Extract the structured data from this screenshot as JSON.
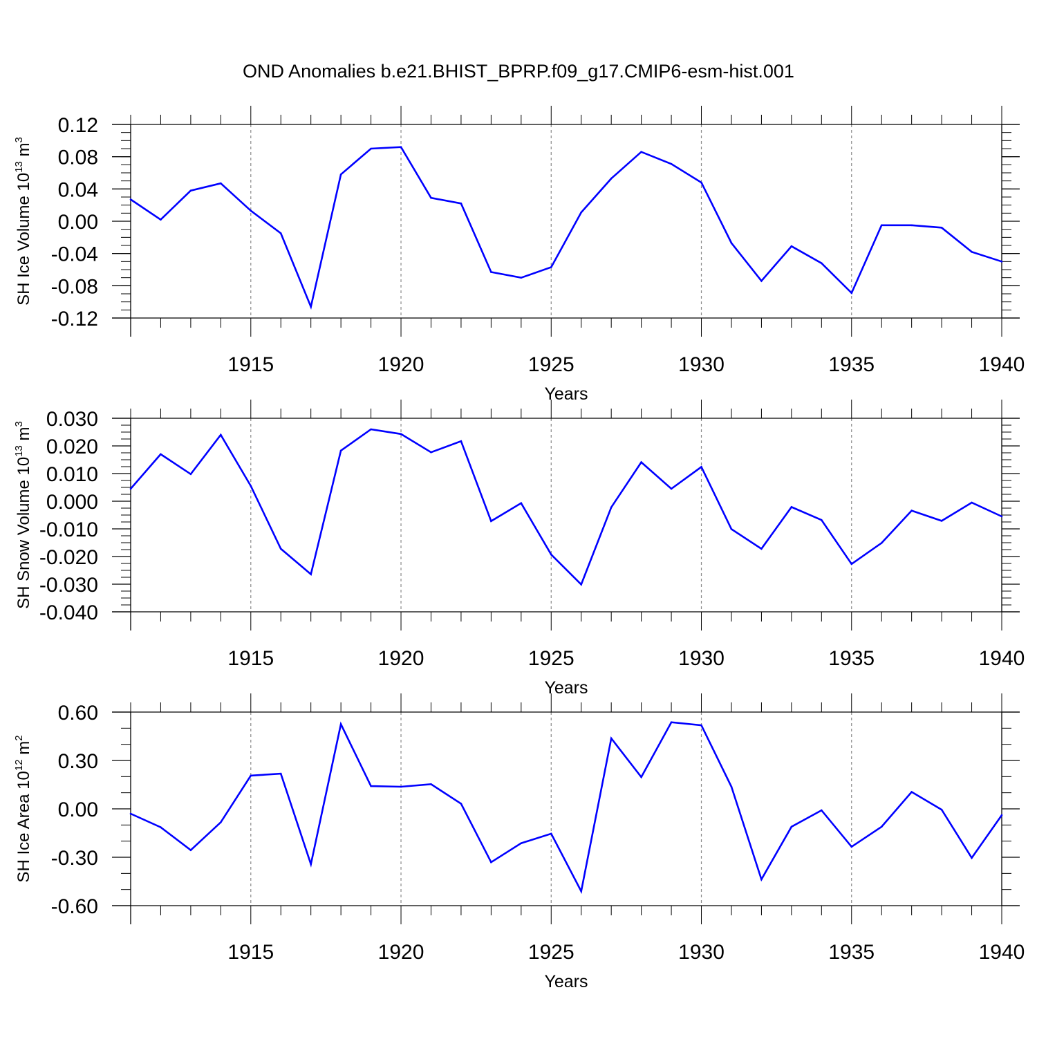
{
  "title": "OND Anomalies b.e21.BHIST_BPRP.f09_g17.CMIP6-esm-hist.001",
  "chart_data": [
    {
      "type": "line",
      "ylabel": "SH Ice Volume 10",
      "ylabel_exp": "13",
      "ylabel_unit": " m",
      "ylabel_unit_exp": "3",
      "xlabel": "Years",
      "xlim": [
        1911,
        1940
      ],
      "ylim": [
        -0.12,
        0.12
      ],
      "yticks": [
        -0.12,
        -0.08,
        -0.04,
        0.0,
        0.04,
        0.08,
        0.12
      ],
      "ytick_labels": [
        "-0.12",
        "-0.08",
        "-0.04",
        "0.00",
        "0.04",
        "0.08",
        "0.12"
      ],
      "yminor_step": 0.01,
      "xticks": [
        1915,
        1920,
        1925,
        1930,
        1935,
        1940
      ],
      "xtick_labels": [
        "1915",
        "1920",
        "1925",
        "1930",
        "1935",
        "1940"
      ],
      "color": "#0000ff",
      "x": [
        1911,
        1912,
        1913,
        1914,
        1915,
        1916,
        1917,
        1918,
        1919,
        1920,
        1921,
        1922,
        1923,
        1924,
        1925,
        1926,
        1927,
        1928,
        1929,
        1930,
        1931,
        1932,
        1933,
        1934,
        1935,
        1936,
        1937,
        1938,
        1939,
        1940
      ],
      "values": [
        0.027,
        0.002,
        0.038,
        0.047,
        0.013,
        -0.015,
        -0.106,
        0.058,
        0.09,
        0.092,
        0.029,
        0.022,
        -0.063,
        -0.07,
        -0.057,
        0.011,
        0.053,
        0.086,
        0.071,
        0.048,
        -0.027,
        -0.074,
        -0.031,
        -0.052,
        -0.089,
        -0.005,
        -0.005,
        -0.008,
        -0.038,
        -0.05
      ]
    },
    {
      "type": "line",
      "ylabel": "SH Snow Volume 10",
      "ylabel_exp": "13",
      "ylabel_unit": " m",
      "ylabel_unit_exp": "3",
      "xlabel": "Years",
      "xlim": [
        1911,
        1940
      ],
      "ylim": [
        -0.04,
        0.03
      ],
      "yticks": [
        -0.04,
        -0.03,
        -0.02,
        -0.01,
        0.0,
        0.01,
        0.02,
        0.03
      ],
      "ytick_labels": [
        "-0.040",
        "-0.030",
        "-0.020",
        "-0.010",
        "0.000",
        "0.010",
        "0.020",
        "0.030"
      ],
      "yminor_step": 0.0025,
      "xticks": [
        1915,
        1920,
        1925,
        1930,
        1935,
        1940
      ],
      "xtick_labels": [
        "1915",
        "1920",
        "1925",
        "1930",
        "1935",
        "1940"
      ],
      "color": "#0000ff",
      "x": [
        1911,
        1912,
        1913,
        1914,
        1915,
        1916,
        1917,
        1918,
        1919,
        1920,
        1921,
        1922,
        1923,
        1924,
        1925,
        1926,
        1927,
        1928,
        1929,
        1930,
        1931,
        1932,
        1933,
        1934,
        1935,
        1936,
        1937,
        1938,
        1939,
        1940
      ],
      "values": [
        0.0045,
        0.017,
        0.0098,
        0.024,
        0.0055,
        -0.0172,
        -0.0264,
        0.0183,
        0.026,
        0.0243,
        0.0177,
        0.0217,
        -0.0072,
        -0.0007,
        -0.0193,
        -0.0301,
        -0.0022,
        0.0141,
        0.0045,
        0.0124,
        -0.0101,
        -0.0172,
        -0.0021,
        -0.0068,
        -0.0227,
        -0.0151,
        -0.0034,
        -0.0071,
        -0.0005,
        -0.0055
      ]
    },
    {
      "type": "line",
      "ylabel": "SH Ice Area 10",
      "ylabel_exp": "12",
      "ylabel_unit": " m",
      "ylabel_unit_exp": "2",
      "xlabel": "Years",
      "xlim": [
        1911,
        1940
      ],
      "ylim": [
        -0.6,
        0.6
      ],
      "yticks": [
        -0.6,
        -0.3,
        0.0,
        0.3,
        0.6
      ],
      "ytick_labels": [
        "-0.60",
        "-0.30",
        "0.00",
        "0.30",
        "0.60"
      ],
      "yminor_step": 0.1,
      "xticks": [
        1915,
        1920,
        1925,
        1930,
        1935,
        1940
      ],
      "xtick_labels": [
        "1915",
        "1920",
        "1925",
        "1930",
        "1935",
        "1940"
      ],
      "color": "#0000ff",
      "x": [
        1911,
        1912,
        1913,
        1914,
        1915,
        1916,
        1917,
        1918,
        1919,
        1920,
        1921,
        1922,
        1923,
        1924,
        1925,
        1926,
        1927,
        1928,
        1929,
        1930,
        1931,
        1932,
        1933,
        1934,
        1935,
        1936,
        1937,
        1938,
        1939,
        1940
      ],
      "values": [
        -0.03,
        -0.114,
        -0.256,
        -0.083,
        0.206,
        0.218,
        -0.343,
        0.525,
        0.141,
        0.137,
        0.153,
        0.032,
        -0.331,
        -0.213,
        -0.154,
        -0.511,
        0.437,
        0.197,
        0.537,
        0.518,
        0.137,
        -0.437,
        -0.111,
        -0.009,
        -0.235,
        -0.111,
        0.105,
        -0.005,
        -0.304,
        -0.039
      ]
    }
  ]
}
